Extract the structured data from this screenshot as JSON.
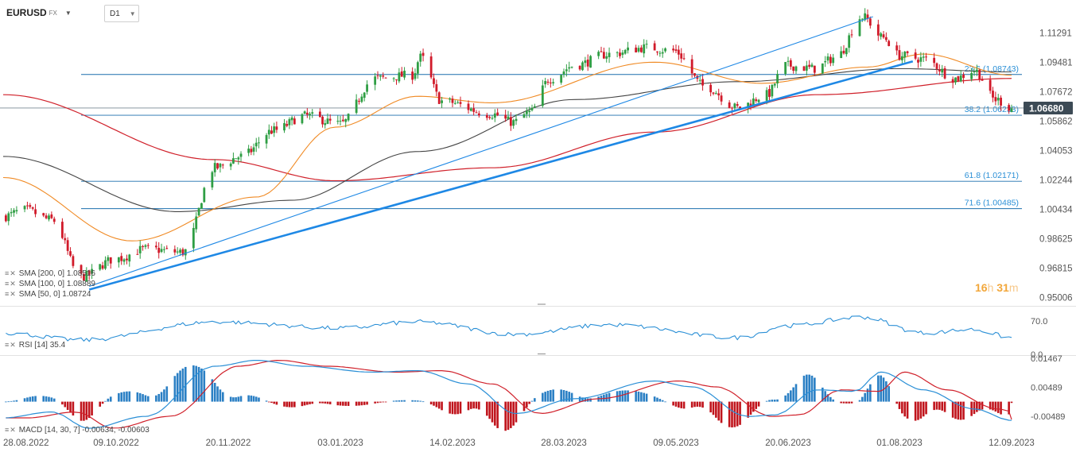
{
  "header": {
    "symbol": "EURUSD",
    "market": "FX",
    "timeframe": "D1"
  },
  "legend": {
    "sma200": "SMA [200, 0] 1.08516",
    "sma100": "SMA [100, 0] 1.08889",
    "sma50": "SMA [50, 0] 1.08724",
    "rsi": "RSI [14] 35.4",
    "macd": "MACD [14, 30, 7] -0.00634, -0.00603"
  },
  "timer": {
    "hours": "16",
    "h_unit": "h",
    "minutes": "31",
    "m_unit": "m"
  },
  "colors": {
    "bull": "#2f9e44",
    "bear": "#d11a2a",
    "sma200": "#d0202a",
    "sma100": "#444444",
    "sma50": "#f08a24",
    "trend": "#1e88e5",
    "fib": "#1c6fae",
    "rsi": "#2a8fd6",
    "macd": "#2a8fd6",
    "signal": "#d0202a",
    "price_tag": "#3c4a55"
  },
  "chart_data": [
    {
      "type": "candlestick",
      "ylim": [
        0.945,
        1.1235
      ],
      "y_ticks": [
        "1.11291",
        "1.09481",
        "1.07672",
        "1.05862",
        "1.04053",
        "1.02244",
        "1.00434",
        "0.98625",
        "0.96815",
        "0.95006"
      ],
      "x_ticks": [
        "28.08.2022",
        "09.10.2022",
        "20.11.2022",
        "03.01.2023",
        "14.02.2023",
        "28.03.2023",
        "09.05.2023",
        "20.06.2023",
        "01.08.2023",
        "12.09.2023"
      ],
      "last_price": "1.06680",
      "fib_levels": [
        {
          "label": "23.6 (1.08743)",
          "value": 1.08743
        },
        {
          "label": "38.2 (1.06233)",
          "value": 1.06233
        },
        {
          "label": "61.8 (1.02171)",
          "value": 1.02171
        },
        {
          "label": "71.6 (1.00485)",
          "value": 1.00485
        }
      ],
      "close_waypoints": [
        [
          "28.08.2022",
          1.0
        ],
        [
          "05.09.2022",
          1.004
        ],
        [
          "15.09.2022",
          0.998
        ],
        [
          "26.09.2022",
          0.963
        ],
        [
          "09.10.2022",
          0.974
        ],
        [
          "20.10.2022",
          0.98
        ],
        [
          "03.11.2022",
          0.978
        ],
        [
          "15.11.2022",
          1.03
        ],
        [
          "25.11.2022",
          1.037
        ],
        [
          "08.12.2022",
          1.053
        ],
        [
          "20.12.2022",
          1.062
        ],
        [
          "03.01.2023",
          1.057
        ],
        [
          "16.01.2023",
          1.085
        ],
        [
          "30.01.2023",
          1.087
        ],
        [
          "02.02.2023",
          1.098
        ],
        [
          "10.02.2023",
          1.071
        ],
        [
          "01.03.2023",
          1.063
        ],
        [
          "09.03.2023",
          1.058
        ],
        [
          "15.03.2023",
          1.064
        ],
        [
          "23.03.2023",
          1.085
        ],
        [
          "01.04.2023",
          1.093
        ],
        [
          "14.04.2023",
          1.1
        ],
        [
          "28.04.2023",
          1.104
        ],
        [
          "08.05.2023",
          1.102
        ],
        [
          "20.05.2023",
          1.08
        ],
        [
          "01.06.2023",
          1.067
        ],
        [
          "12.06.2023",
          1.075
        ],
        [
          "19.06.2023",
          1.093
        ],
        [
          "30.06.2023",
          1.091
        ],
        [
          "08.07.2023",
          1.098
        ],
        [
          "18.07.2023",
          1.123
        ],
        [
          "26.07.2023",
          1.11
        ],
        [
          "01.08.2023",
          1.099
        ],
        [
          "10.08.2023",
          1.097
        ],
        [
          "22.08.2023",
          1.085
        ],
        [
          "29.08.2023",
          1.09
        ],
        [
          "06.09.2023",
          1.072
        ],
        [
          "12.09.2023",
          1.0668
        ]
      ],
      "sma_waypoints": {
        "sma200": [
          [
            "28.08.2022",
            1.075
          ],
          [
            "15.11.2022",
            1.035
          ],
          [
            "01.01.2023",
            1.022
          ],
          [
            "01.03.2023",
            1.03
          ],
          [
            "01.05.2023",
            1.052
          ],
          [
            "01.07.2023",
            1.075
          ],
          [
            "12.09.2023",
            1.085
          ]
        ],
        "sma100": [
          [
            "28.08.2022",
            1.037
          ],
          [
            "01.11.2022",
            1.003
          ],
          [
            "15.12.2022",
            1.01
          ],
          [
            "01.02.2023",
            1.04
          ],
          [
            "01.04.2023",
            1.072
          ],
          [
            "01.06.2023",
            1.083
          ],
          [
            "01.08.2023",
            1.091
          ],
          [
            "12.09.2023",
            1.089
          ]
        ],
        "sma50": [
          [
            "28.08.2022",
            1.024
          ],
          [
            "15.10.2022",
            0.985
          ],
          [
            "01.12.2022",
            1.012
          ],
          [
            "01.01.2023",
            1.055
          ],
          [
            "01.02.2023",
            1.074
          ],
          [
            "01.03.2023",
            1.07
          ],
          [
            "01.05.2023",
            1.095
          ],
          [
            "10.06.2023",
            1.082
          ],
          [
            "20.07.2023",
            1.092
          ],
          [
            "10.08.2023",
            1.1
          ],
          [
            "12.09.2023",
            1.087
          ]
        ]
      },
      "trendlines": [
        {
          "from": [
            "29.09.2022",
            0.957
          ],
          "to": [
            "22.07.2023",
            1.123
          ]
        },
        {
          "from": [
            "29.09.2022",
            0.955
          ],
          "to": [
            "06.08.2023",
            1.0955
          ]
        }
      ]
    },
    {
      "type": "line",
      "name": "RSI [14]",
      "ylim": [
        0,
        100
      ],
      "y_ticks": [
        "70.0",
        "0.0"
      ],
      "last_value": 35.4,
      "waypoints": [
        [
          "28.08.2022",
          45
        ],
        [
          "26.09.2022",
          30
        ],
        [
          "15.11.2022",
          68
        ],
        [
          "03.01.2023",
          55
        ],
        [
          "01.02.2023",
          68
        ],
        [
          "10.03.2023",
          42
        ],
        [
          "14.04.2023",
          62
        ],
        [
          "01.06.2023",
          35
        ],
        [
          "20.06.2023",
          60
        ],
        [
          "18.07.2023",
          78
        ],
        [
          "10.08.2023",
          45
        ],
        [
          "29.08.2023",
          52
        ],
        [
          "12.09.2023",
          35.4
        ]
      ]
    },
    {
      "type": "macd",
      "name": "MACD [14, 30, 7]",
      "ylim": [
        -0.0098,
        0.0155
      ],
      "y_ticks": [
        "0.01467",
        "0.00489",
        "-0.00489"
      ],
      "macd": -0.00634,
      "signal": -0.00603,
      "waypoints": [
        [
          "28.08.2022",
          -0.0055
        ],
        [
          "15.09.2022",
          -0.0035
        ],
        [
          "29.09.2022",
          -0.009
        ],
        [
          "20.10.2022",
          -0.005
        ],
        [
          "15.11.2022",
          0.012
        ],
        [
          "01.12.2022",
          0.014
        ],
        [
          "20.12.2022",
          0.012
        ],
        [
          "15.01.2023",
          0.01
        ],
        [
          "01.02.2023",
          0.0105
        ],
        [
          "20.02.2023",
          0.006
        ],
        [
          "10.03.2023",
          -0.004
        ],
        [
          "01.04.2023",
          0.001
        ],
        [
          "01.05.2023",
          0.007
        ],
        [
          "15.05.2023",
          0.005
        ],
        [
          "05.06.2023",
          -0.005
        ],
        [
          "15.06.2023",
          -0.0045
        ],
        [
          "01.07.2023",
          0.004
        ],
        [
          "15.07.2023",
          0.0035
        ],
        [
          "25.07.2023",
          0.01
        ],
        [
          "10.08.2023",
          0.004
        ],
        [
          "29.08.2023",
          -0.0025
        ],
        [
          "12.09.2023",
          -0.00634
        ]
      ]
    }
  ]
}
